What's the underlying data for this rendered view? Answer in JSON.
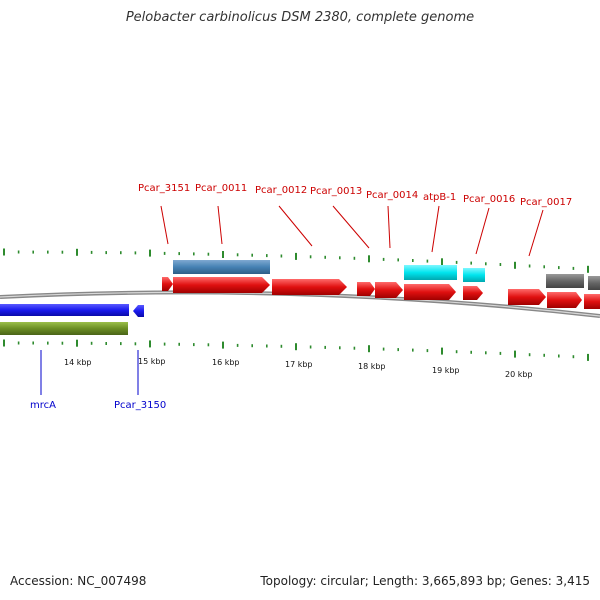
{
  "title": "Pelobacter carbinolicus DSM 2380, complete genome",
  "footer": {
    "accession": "Accession: NC_007498",
    "summary": "Topology: circular; Length: 3,665,893 bp; Genes: 3,415"
  },
  "colors": {
    "backbone": "#888888",
    "forward_cds": "#e01010",
    "reverse_cds": "#1a1aee",
    "blue_feature": "#4682b4",
    "cyan_feature": "#00e5ee",
    "gray_feature": "#666666",
    "olive_feature": "#6b8e23",
    "tick": "#2e8b2e",
    "upper_label": "#cc0000",
    "lower_label": "#0000cc"
  },
  "scale": {
    "unit": "kbp",
    "labels": [
      "14 kbp",
      "15 kbp",
      "16 kbp",
      "17 kbp",
      "18 kbp",
      "19 kbp",
      "20 kbp"
    ]
  },
  "upper_gene_labels": [
    "Pcar_3151",
    "Pcar_0011",
    "Pcar_0012",
    "Pcar_0013",
    "Pcar_0014",
    "atpB-1",
    "Pcar_0016",
    "Pcar_0017"
  ],
  "lower_gene_labels": [
    "mrcA",
    "Pcar_3150"
  ]
}
